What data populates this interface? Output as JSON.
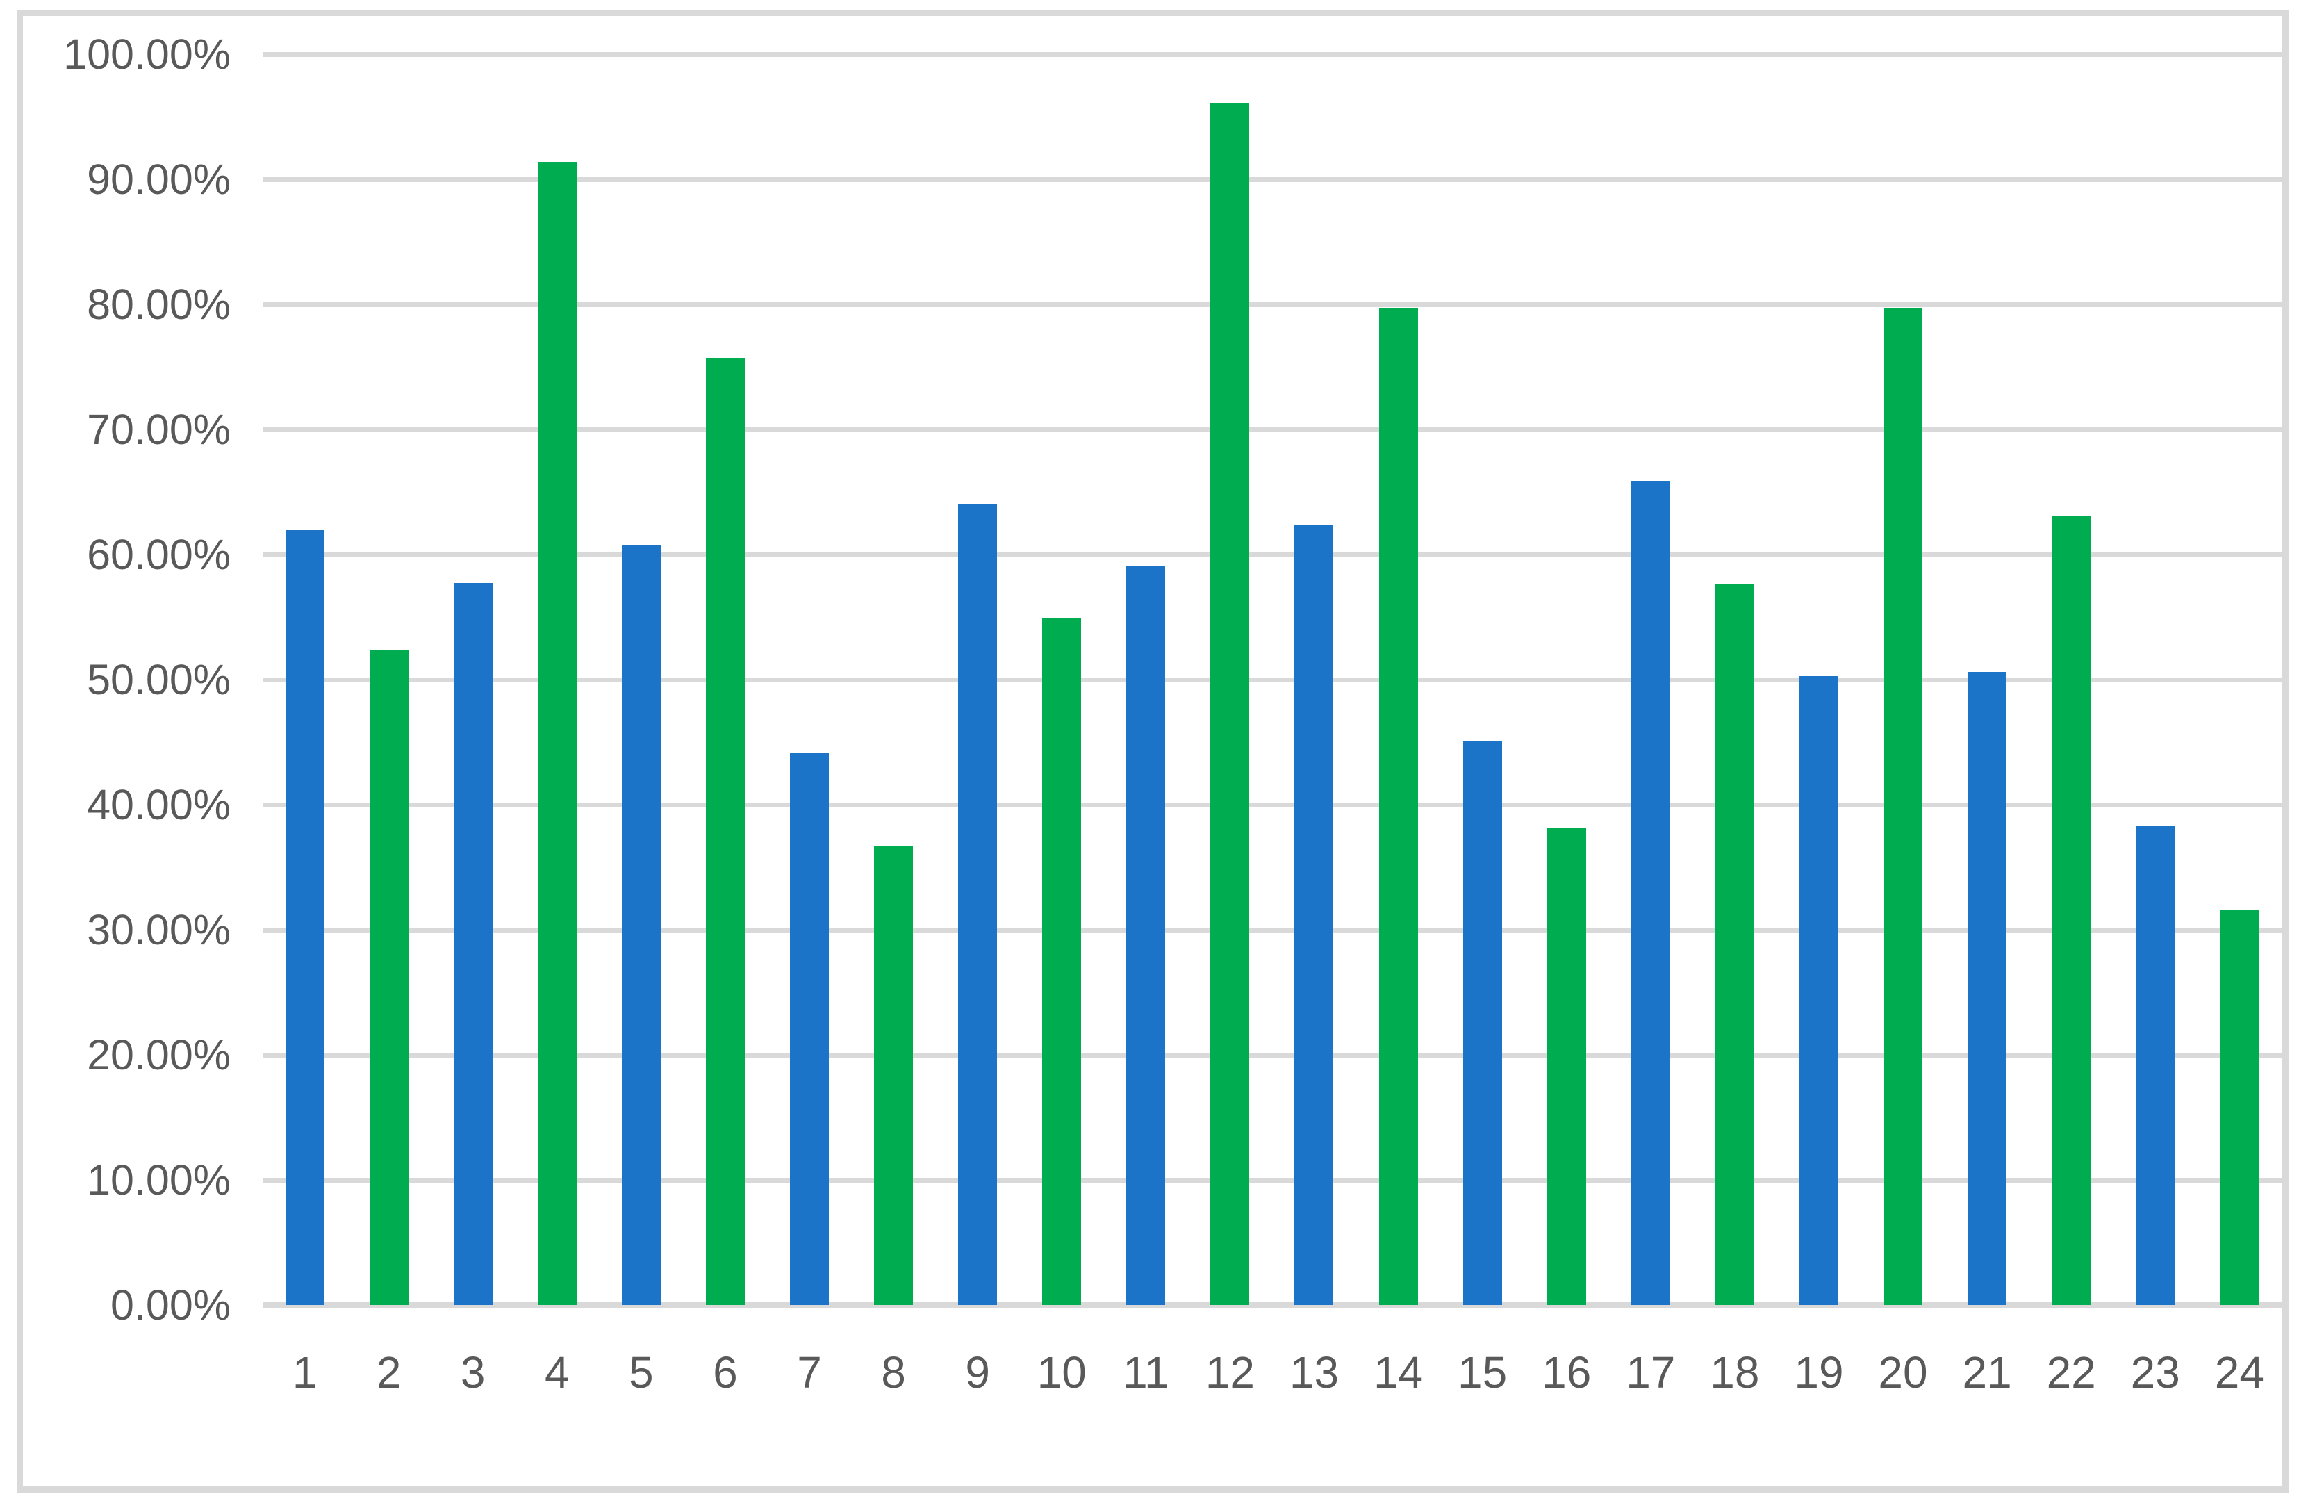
{
  "chart": {
    "background_color": "#ffffff",
    "border_color": "#d9d9d9",
    "gridline_color": "#d9d9d9",
    "axis_line_color": "#d9d9d9",
    "label_color": "#595959",
    "series_color_blue": "#1b74c8",
    "series_color_green": "#00ac50"
  },
  "chart_data": {
    "type": "bar",
    "title": "",
    "xlabel": "",
    "ylabel": "",
    "categories": [
      "1",
      "2",
      "3",
      "4",
      "5",
      "6",
      "7",
      "8",
      "9",
      "10",
      "11",
      "12",
      "13",
      "14",
      "15",
      "16",
      "17",
      "18",
      "19",
      "20",
      "21",
      "22",
      "23",
      "24"
    ],
    "values": [
      62.0,
      52.4,
      57.7,
      91.4,
      60.7,
      75.7,
      44.1,
      36.7,
      64.0,
      54.9,
      59.1,
      96.1,
      62.4,
      79.7,
      45.1,
      38.1,
      65.9,
      57.6,
      50.3,
      79.7,
      50.6,
      63.1,
      38.3,
      31.6
    ],
    "value_unit": "percent",
    "point_colors": [
      "#1b74c8",
      "#00ac50",
      "#1b74c8",
      "#00ac50",
      "#1b74c8",
      "#00ac50",
      "#1b74c8",
      "#00ac50",
      "#1b74c8",
      "#00ac50",
      "#1b74c8",
      "#00ac50",
      "#1b74c8",
      "#00ac50",
      "#1b74c8",
      "#00ac50",
      "#1b74c8",
      "#00ac50",
      "#1b74c8",
      "#00ac50",
      "#1b74c8",
      "#00ac50",
      "#1b74c8",
      "#00ac50"
    ],
    "ylim": [
      0,
      100
    ],
    "y_tick_step": 10,
    "y_tick_labels_bottom_to_top": [
      "0.00%",
      "10.00%",
      "20.00%",
      "30.00%",
      "40.00%",
      "50.00%",
      "60.00%",
      "70.00%",
      "80.00%",
      "90.00%",
      "100.00%"
    ],
    "grid": true,
    "legend_position": "none"
  }
}
